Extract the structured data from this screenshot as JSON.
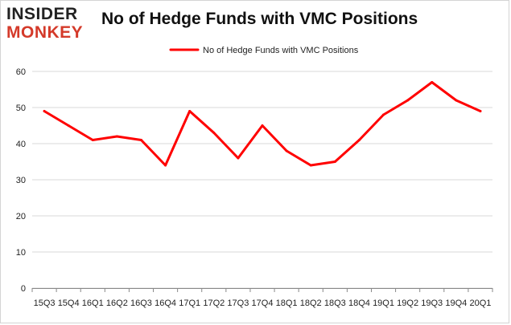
{
  "logo": {
    "line1": "INSIDER",
    "line2": "MONKEY"
  },
  "colors": {
    "series": "#ff0000",
    "grid": "#d9d9d9",
    "axis": "#888888",
    "logo_accent": "#d43a2a"
  },
  "chart_data": {
    "type": "line",
    "title": "No of Hedge Funds with VMC Positions",
    "xlabel": "",
    "ylabel": "",
    "categories": [
      "15Q3",
      "15Q4",
      "16Q1",
      "16Q2",
      "16Q3",
      "16Q4",
      "17Q1",
      "17Q2",
      "17Q3",
      "17Q4",
      "18Q1",
      "18Q2",
      "18Q3",
      "18Q4",
      "19Q1",
      "19Q2",
      "19Q3",
      "19Q4",
      "20Q1"
    ],
    "series": [
      {
        "name": "No of Hedge Funds with VMC Positions",
        "values": [
          49,
          45,
          41,
          42,
          41,
          34,
          49,
          43,
          36,
          45,
          38,
          34,
          35,
          41,
          48,
          52,
          57,
          52,
          49
        ]
      }
    ],
    "ylim": [
      0,
      60
    ],
    "yticks": [
      0,
      10,
      20,
      30,
      40,
      50,
      60
    ],
    "grid": true,
    "legend": "top-center"
  }
}
